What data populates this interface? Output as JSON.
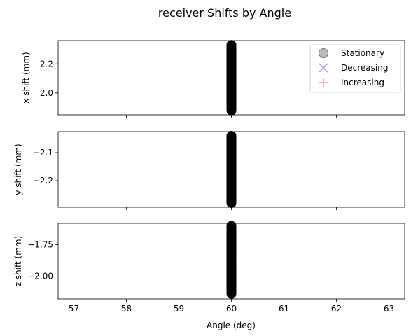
{
  "chart_data": {
    "type": "scatter",
    "title": "receiver Shifts by Angle",
    "xlabel": "Angle (deg)",
    "xlim": [
      56.7,
      63.3
    ],
    "xticks": [
      57,
      58,
      59,
      60,
      61,
      62,
      63
    ],
    "legend": {
      "placement": "top-right",
      "entries": [
        {
          "label": "Stationary",
          "marker": "circle",
          "color": "#808080"
        },
        {
          "label": "Decreasing",
          "marker": "x",
          "color": "#9999ff"
        },
        {
          "label": "Increasing",
          "marker": "plus",
          "color": "#ff9999"
        }
      ]
    },
    "panels": [
      {
        "ylabel": "x shift (mm)",
        "ylim": [
          1.85,
          2.36
        ],
        "yticks": [
          2.0,
          2.2
        ],
        "yticklabels": [
          "2.0",
          "2.2"
        ],
        "series": [
          {
            "name": "Stationary",
            "marker": "circle",
            "color": "#000000",
            "points": {
              "x": 60,
              "y_range": [
                1.88,
                2.33
              ],
              "count": 46
            }
          }
        ]
      },
      {
        "ylabel": "y shift (mm)",
        "ylim": [
          -2.295,
          -2.025
        ],
        "yticks": [
          -2.1,
          -2.2
        ],
        "yticklabels": [
          "−2.1",
          "−2.2"
        ],
        "series": [
          {
            "name": "Stationary",
            "marker": "circle",
            "color": "#000000",
            "points": {
              "x": 60,
              "y_range": [
                -2.28,
                -2.04
              ],
              "count": 46
            }
          }
        ]
      },
      {
        "ylabel": "z shift (mm)",
        "ylim": [
          -2.18,
          -1.58
        ],
        "yticks": [
          -1.75,
          -2.0
        ],
        "yticklabels": [
          "−1.75",
          "−2.00"
        ],
        "series": [
          {
            "name": "Stationary",
            "marker": "circle",
            "color": "#000000",
            "points": {
              "x": 60,
              "y_range": [
                -2.14,
                -1.6
              ],
              "count": 46
            }
          }
        ]
      }
    ]
  }
}
